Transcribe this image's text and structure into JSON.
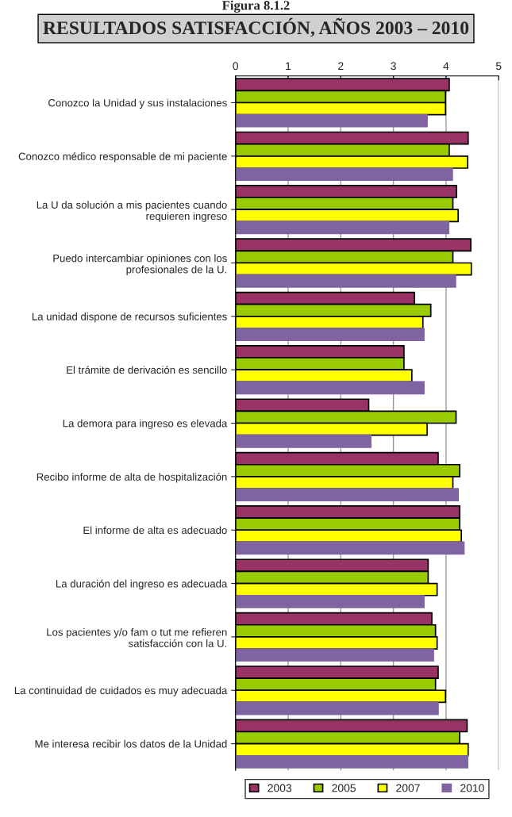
{
  "chart_data": {
    "type": "bar",
    "orientation": "horizontal",
    "title": "RESULTADOS SATISFACCIÓN, AÑOS 2003 – 2010",
    "annotations": [
      "Figura 8.1.2"
    ],
    "categories": [
      "Conozco la Unidad y sus instalaciones",
      "Conozco médico responsable de mi paciente",
      "La U da solución a mis pacientes cuando\nrequieren ingreso",
      "Puedo intercambiar opiniones con los\nprofesionales de la U.",
      "La unidad dispone de recursos suficientes",
      "El trámite de derivación es sencillo",
      "La demora para ingreso es elevada",
      "Recibo informe de alta de hospitalización",
      "El informe de alta es adecuado",
      "La duración del ingreso es adecuada",
      "Los pacientes y/o fam o tut me refieren\nsatisfacción con la U.",
      "La continuidad de cuidados es muy adecuada",
      "Me interesa recibir los datos de la Unidad"
    ],
    "series": [
      {
        "name": "2003",
        "color": "#993366",
        "values": [
          4.06,
          4.42,
          4.2,
          4.47,
          3.4,
          3.2,
          2.53,
          3.85,
          4.26,
          3.66,
          3.73,
          3.85,
          4.4
        ]
      },
      {
        "name": "2005",
        "color": "#99cc00",
        "values": [
          3.99,
          4.06,
          4.13,
          4.13,
          3.71,
          3.2,
          4.19,
          4.26,
          4.26,
          3.66,
          3.8,
          3.8,
          4.26
        ]
      },
      {
        "name": "2007",
        "color": "#ffff00",
        "values": [
          3.99,
          4.41,
          4.23,
          4.48,
          3.56,
          3.35,
          3.64,
          4.13,
          4.29,
          3.83,
          3.83,
          3.99,
          4.42
        ]
      },
      {
        "name": "2010",
        "color": "#8064a2",
        "values": [
          3.64,
          4.12,
          4.05,
          4.18,
          3.58,
          3.58,
          2.57,
          4.23,
          4.34,
          3.58,
          3.76,
          3.85,
          4.41
        ]
      }
    ],
    "xlim": [
      0,
      5
    ],
    "xticks": [
      0,
      1,
      2,
      3,
      4,
      5
    ],
    "grid": "x",
    "legend": "bottom"
  }
}
